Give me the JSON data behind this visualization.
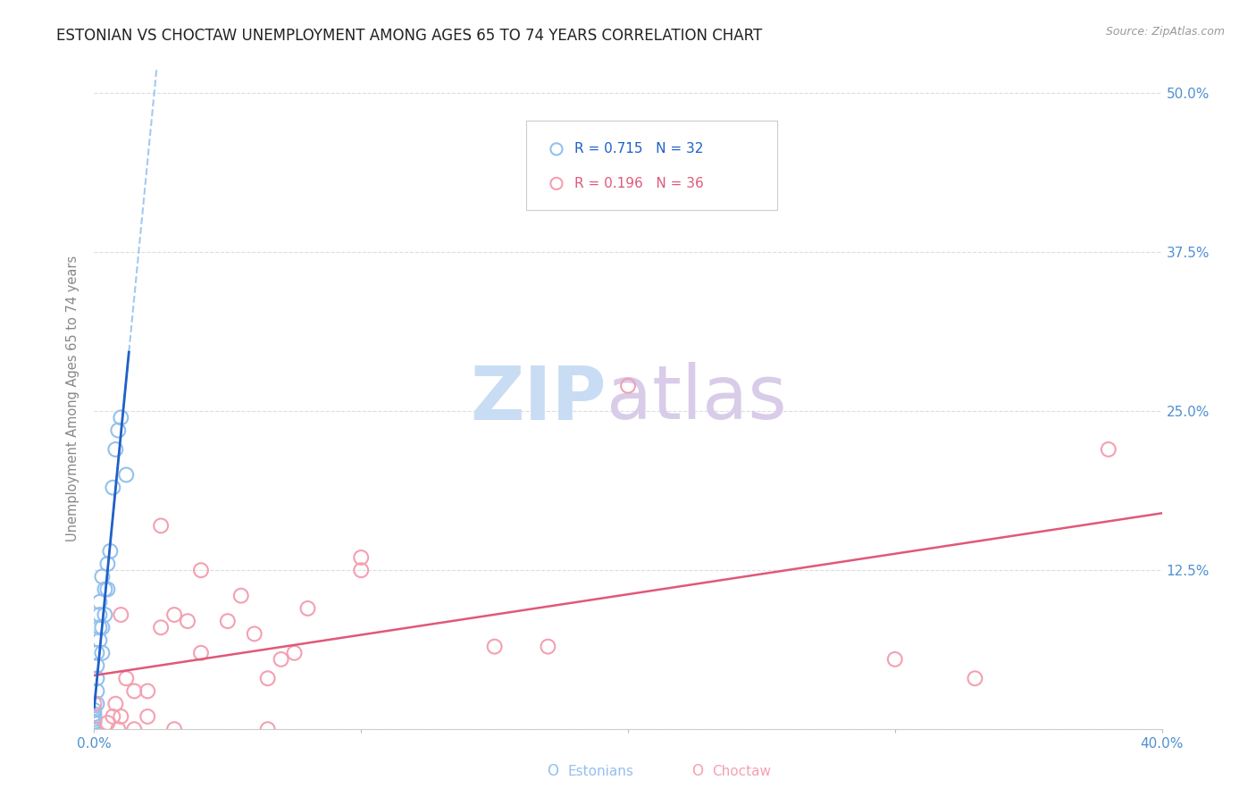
{
  "title": "ESTONIAN VS CHOCTAW UNEMPLOYMENT AMONG AGES 65 TO 74 YEARS CORRELATION CHART",
  "source": "Source: ZipAtlas.com",
  "ylabel_label": "Unemployment Among Ages 65 to 74 years",
  "xlim": [
    0.0,
    0.4
  ],
  "ylim": [
    0.0,
    0.52
  ],
  "xticks": [
    0.0,
    0.1,
    0.2,
    0.3,
    0.4
  ],
  "xtick_labels": [
    "0.0%",
    "",
    "",
    "",
    "40.0%"
  ],
  "yticks": [
    0.0,
    0.125,
    0.25,
    0.375,
    0.5
  ],
  "right_ytick_labels": [
    "",
    "12.5%",
    "25.0%",
    "37.5%",
    "50.0%"
  ],
  "estonian_R": "0.715",
  "estonian_N": "32",
  "choctaw_R": "0.196",
  "choctaw_N": "36",
  "estonian_color": "#93C0EE",
  "choctaw_color": "#F4A0B0",
  "trend_estonian_color": "#2060C8",
  "trend_choctaw_color": "#E05878",
  "watermark_zip_color": "#C8DCF4",
  "watermark_atlas_color": "#D8CCE8",
  "estonian_x": [
    0.0,
    0.0,
    0.0,
    0.0,
    0.0,
    0.0,
    0.0,
    0.0,
    0.0,
    0.0,
    0.001,
    0.001,
    0.001,
    0.001,
    0.001,
    0.002,
    0.002,
    0.002,
    0.002,
    0.003,
    0.003,
    0.003,
    0.004,
    0.004,
    0.005,
    0.005,
    0.006,
    0.007,
    0.008,
    0.009,
    0.01,
    0.012
  ],
  "estonian_y": [
    0.0,
    0.0,
    0.0,
    0.0,
    0.005,
    0.006,
    0.008,
    0.01,
    0.012,
    0.015,
    0.02,
    0.03,
    0.04,
    0.05,
    0.06,
    0.07,
    0.08,
    0.09,
    0.1,
    0.06,
    0.08,
    0.12,
    0.09,
    0.11,
    0.11,
    0.13,
    0.14,
    0.19,
    0.22,
    0.235,
    0.245,
    0.2
  ],
  "choctaw_x": [
    0.0,
    0.0,
    0.005,
    0.007,
    0.008,
    0.009,
    0.01,
    0.01,
    0.012,
    0.015,
    0.015,
    0.02,
    0.02,
    0.025,
    0.025,
    0.03,
    0.03,
    0.035,
    0.04,
    0.04,
    0.05,
    0.055,
    0.06,
    0.065,
    0.065,
    0.07,
    0.075,
    0.08,
    0.1,
    0.1,
    0.15,
    0.17,
    0.2,
    0.3,
    0.33,
    0.38
  ],
  "choctaw_y": [
    0.0,
    0.02,
    0.005,
    0.01,
    0.02,
    0.0,
    0.01,
    0.09,
    0.04,
    0.0,
    0.03,
    0.01,
    0.03,
    0.08,
    0.16,
    0.0,
    0.09,
    0.085,
    0.06,
    0.125,
    0.085,
    0.105,
    0.075,
    0.0,
    0.04,
    0.055,
    0.06,
    0.095,
    0.125,
    0.135,
    0.065,
    0.065,
    0.27,
    0.055,
    0.04,
    0.22
  ],
  "grid_color": "#DDDDDD",
  "background_color": "#FFFFFF",
  "title_fontsize": 12,
  "tick_label_color": "#5090D0"
}
